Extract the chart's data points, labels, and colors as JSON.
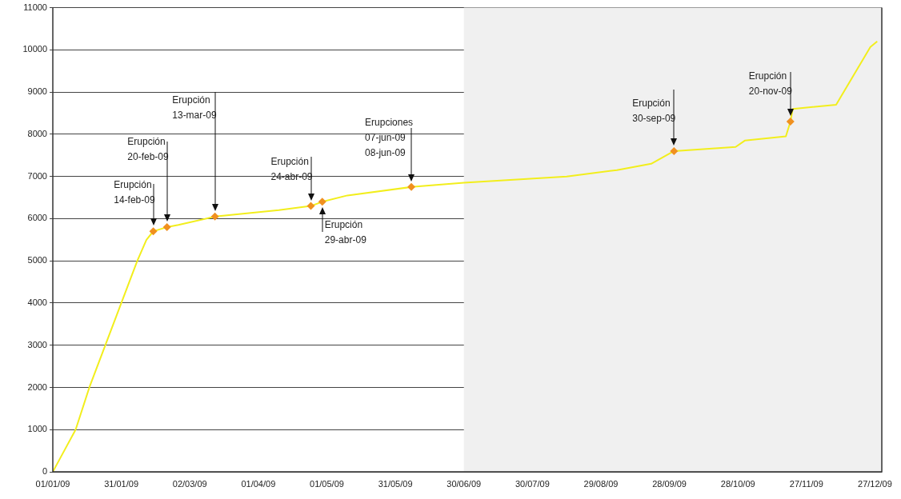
{
  "chart_data": {
    "type": "line",
    "xlim": [
      "2009-01-01",
      "2009-12-30"
    ],
    "ylim": [
      0,
      11000
    ],
    "xticks": [
      {
        "value": "2009-01-01",
        "label": "01/01/09"
      },
      {
        "value": "2009-01-31",
        "label": "31/01/09"
      },
      {
        "value": "2009-03-02",
        "label": "02/03/09"
      },
      {
        "value": "2009-04-01",
        "label": "01/04/09"
      },
      {
        "value": "2009-05-01",
        "label": "01/05/09"
      },
      {
        "value": "2009-05-31",
        "label": "31/05/09"
      },
      {
        "value": "2009-06-30",
        "label": "30/06/09"
      },
      {
        "value": "2009-07-30",
        "label": "30/07/09"
      },
      {
        "value": "2009-08-29",
        "label": "29/08/09"
      },
      {
        "value": "2009-09-28",
        "label": "28/09/09"
      },
      {
        "value": "2009-10-28",
        "label": "28/10/09"
      },
      {
        "value": "2009-11-27",
        "label": "27/11/09"
      },
      {
        "value": "2009-12-27",
        "label": "27/12/09"
      }
    ],
    "yticks": [
      0,
      1000,
      2000,
      3000,
      4000,
      5000,
      6000,
      7000,
      8000,
      9000,
      10000,
      11000
    ],
    "grid": "y",
    "legend": false,
    "bands": [
      {
        "axis": "x",
        "from": "2009-06-30",
        "to": "2009-12-30",
        "color": "#f0f0f0"
      }
    ],
    "series": [
      {
        "type": "line",
        "color": "#f2ee1c",
        "marker": "none",
        "x": [
          "2009-01-01",
          "2009-01-05",
          "2009-01-11",
          "2009-01-17",
          "2009-01-24",
          "2009-01-31",
          "2009-02-07",
          "2009-02-11",
          "2009-02-14",
          "2009-02-17",
          "2009-02-20",
          "2009-02-25",
          "2009-03-13",
          "2009-04-10",
          "2009-04-24",
          "2009-04-29",
          "2009-05-10",
          "2009-06-07",
          "2009-06-30",
          "2009-08-14",
          "2009-09-05",
          "2009-09-20",
          "2009-09-30",
          "2009-10-27",
          "2009-10-31",
          "2009-11-18",
          "2009-11-20",
          "2009-11-21",
          "2009-12-10",
          "2009-12-25",
          "2009-12-28"
        ],
        "values": [
          0,
          400,
          1000,
          2000,
          3000,
          4000,
          5000,
          5500,
          5700,
          5750,
          5800,
          5850,
          6050,
          6200,
          6300,
          6400,
          6550,
          6750,
          6850,
          7000,
          7150,
          7300,
          7600,
          7700,
          7850,
          7950,
          8300,
          8600,
          8700,
          10070,
          10200
        ]
      },
      {
        "type": "scatter",
        "color": "#f0901f",
        "marker": "diamond",
        "x": [
          "2009-02-14",
          "2009-02-20",
          "2009-03-13",
          "2009-04-24",
          "2009-04-29",
          "2009-06-07",
          "2009-09-30",
          "2009-11-20"
        ],
        "values": [
          5700,
          5800,
          6050,
          6300,
          6400,
          6750,
          7600,
          8300
        ]
      }
    ],
    "annotations": [
      {
        "text": "Erupción\n14-feb-09",
        "x": "2009-02-14",
        "y": 5700
      },
      "Erupción\n20-feb-09",
      "Erupción\n13-mar-09",
      {
        "text": "Erupción\n24-abr-09",
        "x": "2009-04-24",
        "y": 6300
      },
      {
        "text": "Erupción\n29-abr-09",
        "x": "2009-04-29",
        "y": 6400
      },
      {
        "text": "Erupciones\n07-jun-09\n08-jun-09",
        "x": "2009-06-07",
        "y": 6750
      },
      {
        "text": "Erupción\n30-sep-09",
        "x": "2009-09-30",
        "y": 7600
      },
      {
        "text": "Erupción\n20-nov-09",
        "x": "2009-11-20",
        "y": 8300
      }
    ]
  }
}
